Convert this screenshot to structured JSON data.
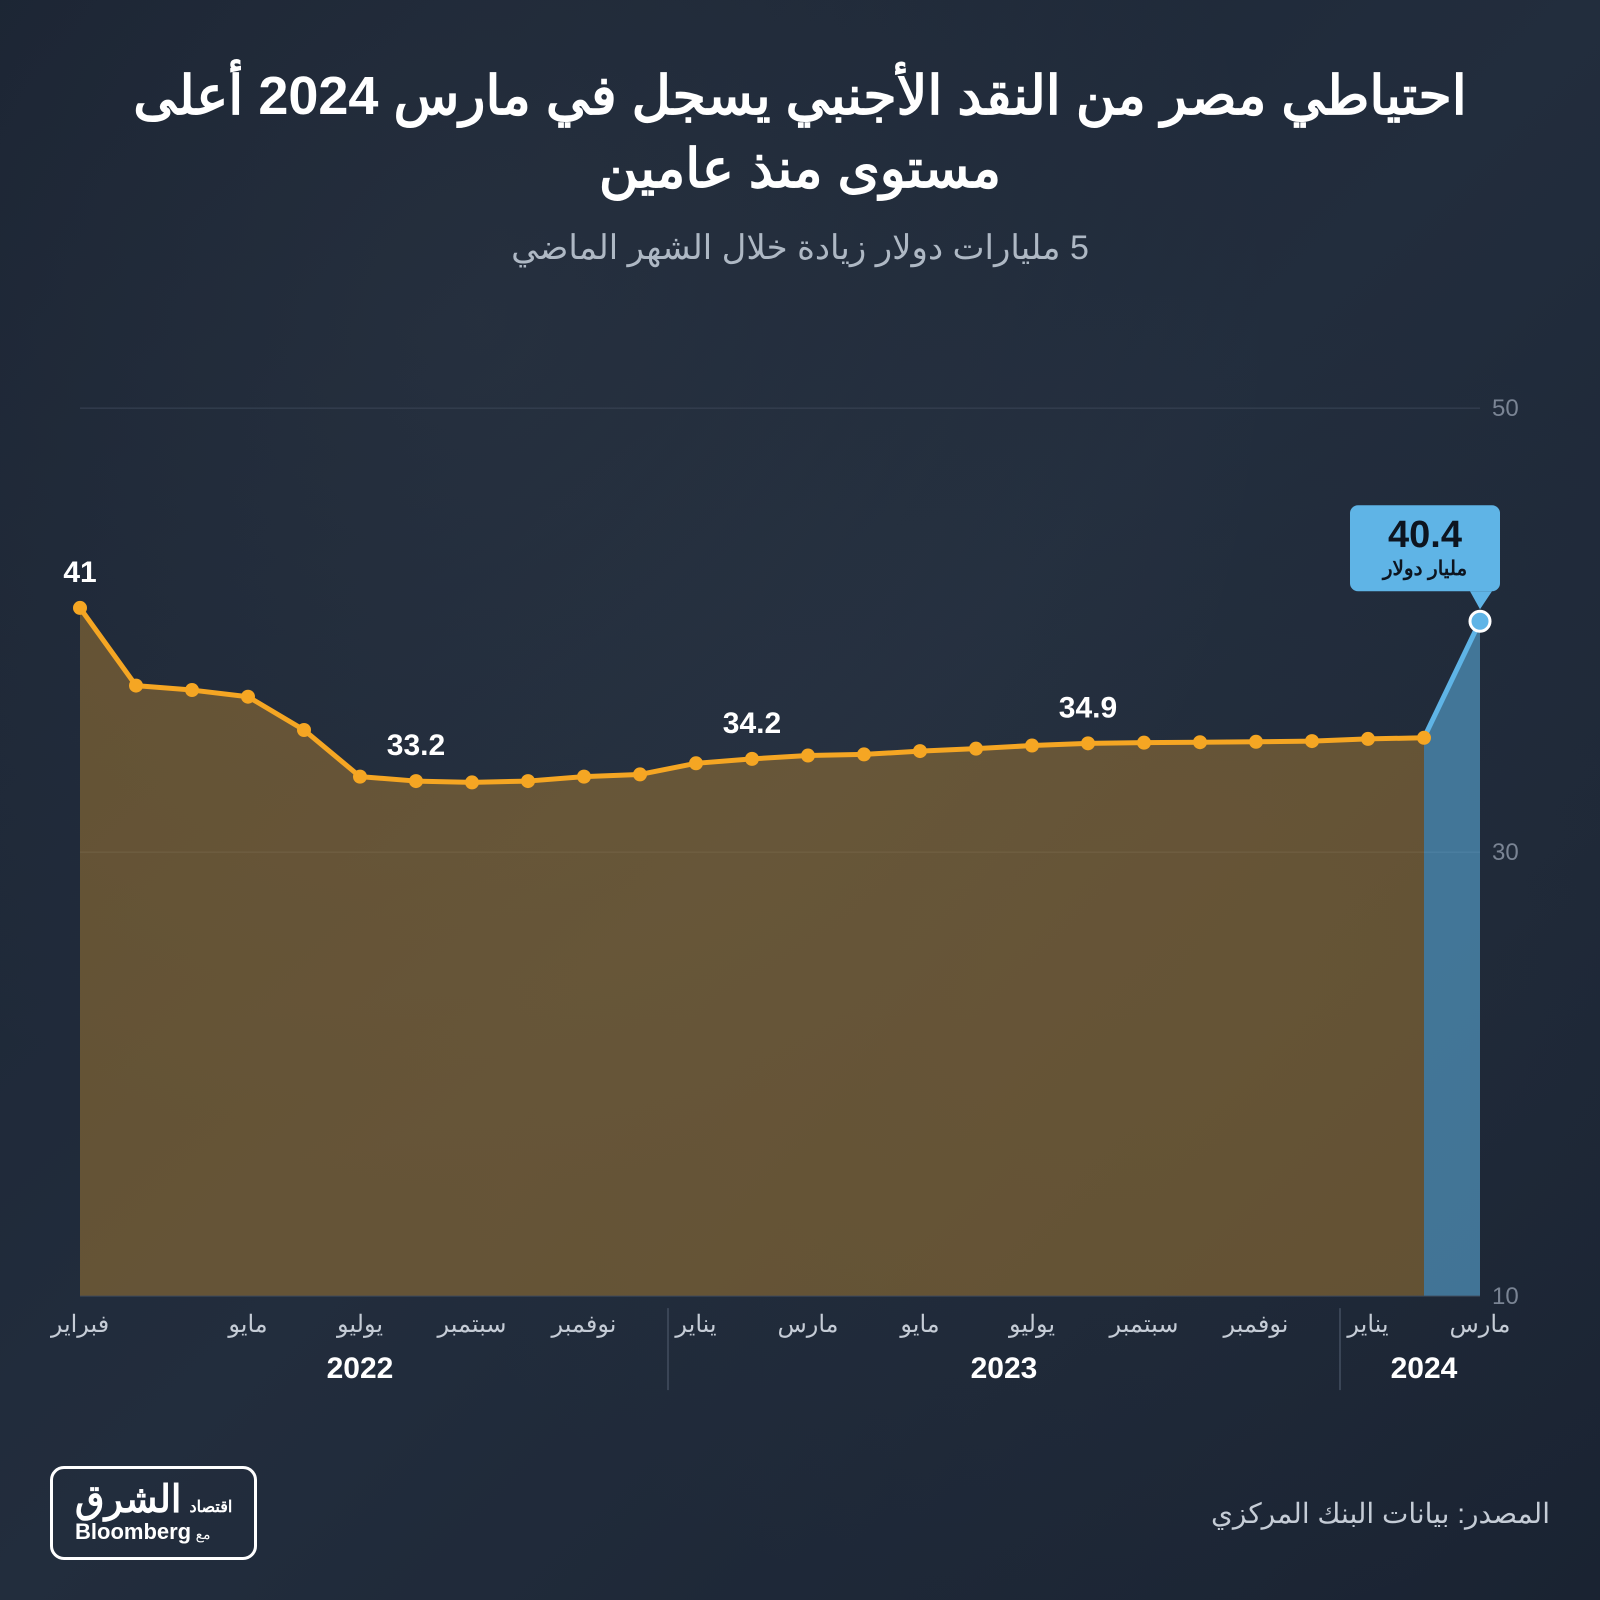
{
  "title": "احتياطي مصر من النقد الأجنبي يسجل في مارس 2024 أعلى مستوى منذ عامين",
  "subtitle": "5 مليارات دولار زيادة خلال الشهر الماضي",
  "source": "المصدر: بيانات البنك المركزي",
  "logo": {
    "main": "الشرق",
    "sub": "اقتصاد",
    "partner": "Bloomberg",
    "with": "مع"
  },
  "chart": {
    "type": "area-line",
    "background_color": "#1a2332",
    "line_color": "#f5a623",
    "line_width": 5,
    "marker_radius": 7,
    "marker_fill": "#f5a623",
    "area_fill": "rgba(184,132,48,0.45)",
    "last_segment_color": "#5fb4e6",
    "last_area_fill": "rgba(95,180,230,0.55)",
    "ylim": [
      10,
      50
    ],
    "yticks": [
      10,
      30,
      50
    ],
    "ytick_color": "#7a8494",
    "ytick_fontsize": 24,
    "grid_color": "#3a4556",
    "xlabel_color": "#c5ccd6",
    "xlabel_fontsize": 24,
    "year_color": "#ffffff",
    "year_fontsize": 30,
    "values": [
      41,
      37.5,
      37.3,
      37.0,
      35.5,
      33.4,
      33.2,
      33.14,
      33.2,
      33.4,
      33.5,
      34.0,
      34.2,
      34.35,
      34.4,
      34.55,
      34.66,
      34.8,
      34.9,
      34.93,
      34.95,
      34.97,
      35.0,
      35.1,
      35.15,
      40.4
    ],
    "x_labels": [
      "فبراير",
      "",
      "",
      "مايو",
      "",
      "يوليو",
      "",
      "سبتمبر",
      "",
      "نوفمبر",
      "",
      "يناير",
      "",
      "مارس",
      "",
      "مايو",
      "",
      "يوليو",
      "",
      "سبتمبر",
      "",
      "نوفمبر",
      "",
      "يناير",
      "",
      "مارس"
    ],
    "year_groups": [
      {
        "label": "2022",
        "start": 0,
        "end": 10
      },
      {
        "label": "2023",
        "start": 11,
        "end": 22
      },
      {
        "label": "2024",
        "start": 23,
        "end": 25
      }
    ],
    "annotations": [
      {
        "i": 0,
        "text": "41",
        "dy": -26,
        "fontsize": 30,
        "weight": 700
      },
      {
        "i": 6,
        "text": "33.2",
        "dy": -26,
        "fontsize": 30,
        "weight": 700
      },
      {
        "i": 12,
        "text": "34.2",
        "dy": -26,
        "fontsize": 30,
        "weight": 700
      },
      {
        "i": 18,
        "text": "34.9",
        "dy": -26,
        "fontsize": 30,
        "weight": 700
      }
    ],
    "callout": {
      "i": 25,
      "value_text": "40.4",
      "unit_text": "مليار دولار",
      "box_fill": "#5fb4e6",
      "text_color": "#0d1520",
      "value_fontsize": 38,
      "unit_fontsize": 20
    }
  }
}
